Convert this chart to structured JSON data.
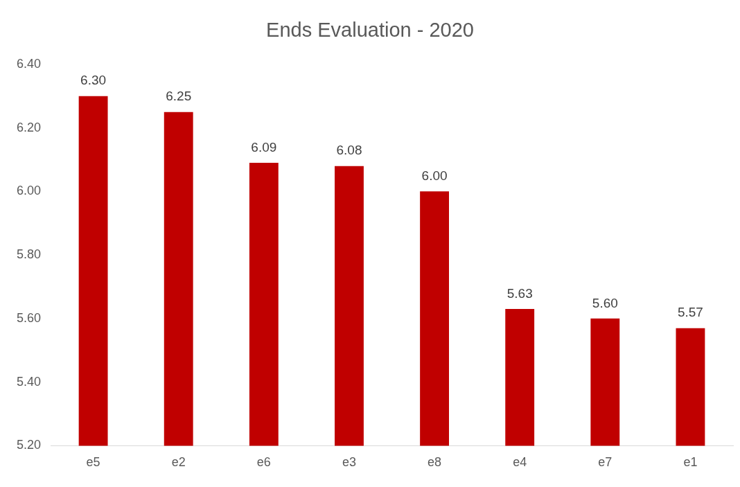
{
  "chart_data": {
    "type": "bar",
    "title": "Ends Evaluation - 2020",
    "categories": [
      "e5",
      "e2",
      "e6",
      "e3",
      "e8",
      "e4",
      "e7",
      "e1"
    ],
    "values": [
      6.3,
      6.25,
      6.09,
      6.08,
      6.0,
      5.63,
      5.6,
      5.57
    ],
    "value_labels": [
      "6.30",
      "6.25",
      "6.09",
      "6.08",
      "6.00",
      "5.63",
      "5.60",
      "5.57"
    ],
    "color": "#c00000",
    "ylim": [
      5.2,
      6.4
    ],
    "yticks": [
      {
        "value": 5.2,
        "label": "5.20"
      },
      {
        "value": 5.4,
        "label": "5.40"
      },
      {
        "value": 5.6,
        "label": "5.60"
      },
      {
        "value": 5.8,
        "label": "5.80"
      },
      {
        "value": 6.0,
        "label": "6.00"
      },
      {
        "value": 6.2,
        "label": "6.20"
      },
      {
        "value": 6.4,
        "label": "6.40"
      }
    ],
    "grid": false,
    "legend": false
  }
}
